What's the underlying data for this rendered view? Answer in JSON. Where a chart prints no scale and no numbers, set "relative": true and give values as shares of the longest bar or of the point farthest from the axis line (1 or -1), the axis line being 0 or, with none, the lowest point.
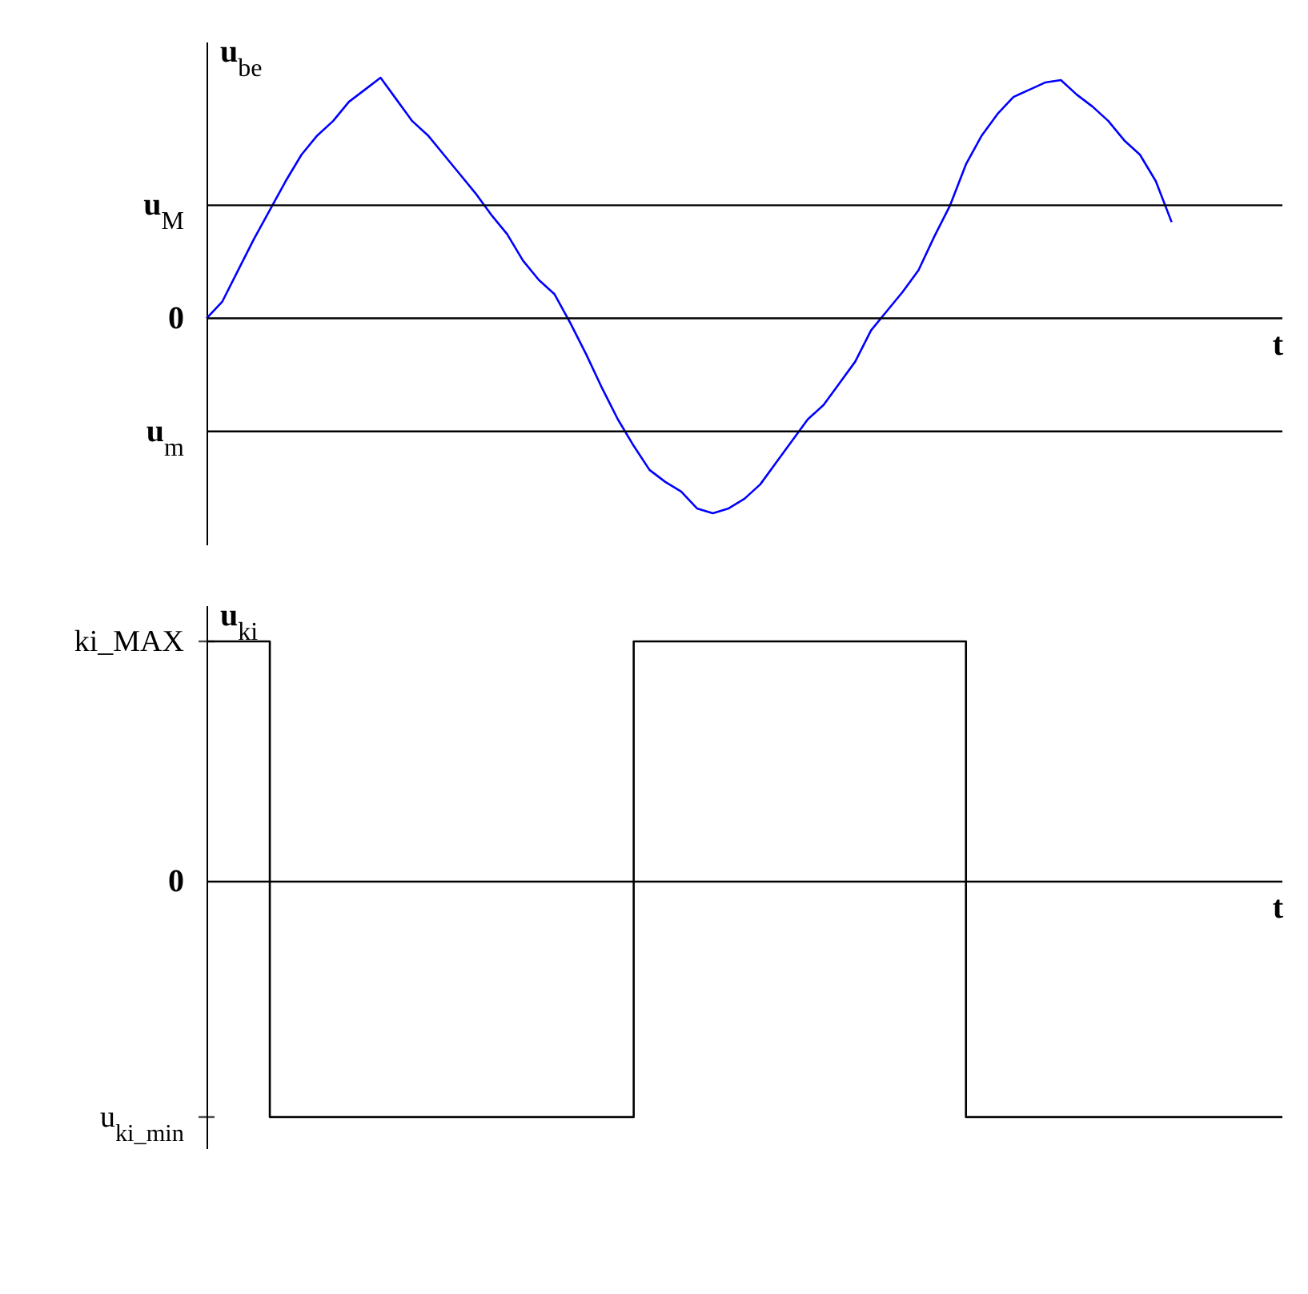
{
  "chart_data": [
    {
      "type": "line",
      "ylabel": "u$_{be}$",
      "xlabel": "t",
      "relative": true,
      "categories": [
        null,
        null,
        null,
        null,
        null,
        null,
        null,
        null,
        null,
        null,
        null,
        null,
        null,
        null,
        null,
        null,
        null,
        null,
        null,
        null,
        null,
        null,
        null,
        null,
        null,
        null,
        null,
        null,
        null,
        null,
        null,
        null,
        null,
        null,
        null,
        null,
        null,
        null,
        null,
        null,
        null,
        null,
        null,
        null,
        null,
        null,
        null,
        null,
        null,
        null,
        null,
        null,
        null,
        null,
        null,
        null,
        null,
        null,
        null,
        null,
        null,
        null,
        null,
        null,
        null,
        null,
        null,
        null,
        null
      ],
      "series": [
        {
          "color": "#0000ff",
          "values": [
            0,
            0.07,
            0.2,
            0.33,
            0.45,
            0.57,
            0.68,
            0.76,
            0.82,
            0.9,
            0.95,
            1,
            0.91,
            0.82,
            0.76,
            0.68,
            0.6,
            0.52,
            0.43,
            0.35,
            0.24,
            0.16,
            0.1,
            -0.02,
            -0.15,
            -0.29,
            -0.42,
            -0.53,
            -0.63,
            -0.68,
            -0.72,
            -0.79,
            -0.81,
            -0.79,
            -0.75,
            -0.69,
            -0.6,
            -0.51,
            -0.42,
            -0.36,
            -0.27,
            -0.18,
            -0.05,
            0.03,
            0.11,
            0.2,
            0.34,
            0.47,
            0.64,
            0.76,
            0.85,
            0.92,
            0.95,
            0.98,
            0.99,
            0.93,
            0.88,
            0.82,
            0.74,
            0.68,
            0.57,
            0.4,
            null,
            null,
            null,
            null,
            null,
            null,
            null
          ]
        }
      ],
      "ref_lines": [
        {
          "axis": "y",
          "value": 0.47,
          "label": "u$_{M}$"
        },
        {
          "axis": "y",
          "value": 0,
          "label": "0"
        },
        {
          "axis": "y",
          "value": -0.47,
          "label": "u$_{m}$"
        }
      ]
    },
    {
      "type": "step",
      "ylabel": "u$_{ki}$",
      "xlabel": "t",
      "relative": true,
      "categories": [
        null,
        null,
        null,
        null,
        null,
        null,
        null,
        null,
        null,
        null,
        null,
        null,
        null,
        null,
        null,
        null,
        null,
        null,
        null,
        null,
        null,
        null,
        null,
        null,
        null,
        null,
        null,
        null,
        null,
        null,
        null,
        null,
        null,
        null,
        null,
        null,
        null,
        null,
        null,
        null,
        null,
        null,
        null,
        null,
        null,
        null,
        null,
        null,
        null,
        null,
        null,
        null,
        null,
        null,
        null,
        null,
        null,
        null,
        null,
        null,
        null,
        null,
        null,
        null,
        null,
        null,
        null,
        null,
        null
      ],
      "series": [
        {
          "color": "#000000",
          "values": [
            1,
            1,
            1,
            1,
            -0.98,
            -0.98,
            -0.98,
            -0.98,
            -0.98,
            -0.98,
            -0.98,
            -0.98,
            -0.98,
            -0.98,
            -0.98,
            -0.98,
            -0.98,
            -0.98,
            -0.98,
            -0.98,
            -0.98,
            -0.98,
            -0.98,
            -0.98,
            -0.98,
            -0.98,
            -0.98,
            1,
            1,
            1,
            1,
            1,
            1,
            1,
            1,
            1,
            1,
            1,
            1,
            1,
            1,
            1,
            1,
            1,
            1,
            1,
            1,
            1,
            -0.98,
            -0.98,
            -0.98,
            -0.98,
            -0.98,
            -0.98,
            -0.98,
            -0.98,
            -0.98,
            -0.98,
            -0.98,
            -0.98,
            -0.98,
            -0.98,
            -0.98,
            -0.98,
            -0.98,
            -0.98,
            -0.98,
            -0.98,
            -0.98
          ]
        }
      ],
      "ref_lines": [
        {
          "axis": "y",
          "value": 0,
          "label": "0"
        }
      ],
      "annotations": [
        "ki_MAX",
        "u$_{ki_min}$"
      ]
    }
  ]
}
